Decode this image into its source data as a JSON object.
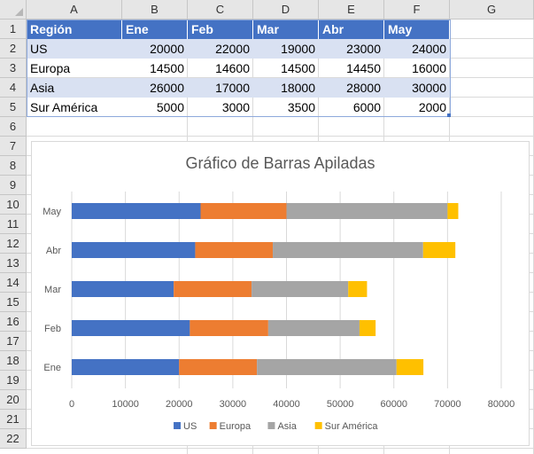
{
  "spreadsheet": {
    "columns": [
      "A",
      "B",
      "C",
      "D",
      "E",
      "F",
      "G"
    ],
    "rows": [
      "1",
      "2",
      "3",
      "4",
      "5",
      "6",
      "7",
      "8",
      "9",
      "10",
      "11",
      "12",
      "13",
      "14",
      "15",
      "16",
      "17",
      "18",
      "19",
      "20",
      "21",
      "22"
    ],
    "table": {
      "header": [
        "Región",
        "Ene",
        "Feb",
        "Mar",
        "Abr",
        "May"
      ],
      "body": [
        [
          "US",
          "20000",
          "22000",
          "19000",
          "23000",
          "24000"
        ],
        [
          "Europa",
          "14500",
          "14600",
          "14500",
          "14450",
          "16000"
        ],
        [
          "Asia",
          "26000",
          "17000",
          "18000",
          "28000",
          "30000"
        ],
        [
          "Sur América",
          "5000",
          "3000",
          "3500",
          "6000",
          "2000"
        ]
      ],
      "header_color": "#4472c4",
      "band_color": "#d9e1f2"
    }
  },
  "chart_data": {
    "type": "bar",
    "orientation": "horizontal",
    "stacked": true,
    "title": "Gráfico de Barras Apiladas",
    "categories": [
      "Ene",
      "Feb",
      "Mar",
      "Abr",
      "May"
    ],
    "series": [
      {
        "name": "US",
        "color": "#4472c4",
        "values": [
          20000,
          22000,
          19000,
          23000,
          24000
        ]
      },
      {
        "name": "Europa",
        "color": "#ed7d31",
        "values": [
          14500,
          14600,
          14500,
          14450,
          16000
        ]
      },
      {
        "name": "Asia",
        "color": "#a5a5a5",
        "values": [
          26000,
          17000,
          18000,
          28000,
          30000
        ]
      },
      {
        "name": "Sur América",
        "color": "#ffc000",
        "values": [
          5000,
          3000,
          3500,
          6000,
          2000
        ]
      }
    ],
    "xlim": [
      0,
      80000
    ],
    "xticks": [
      "0",
      "10000",
      "20000",
      "30000",
      "40000",
      "50000",
      "60000",
      "70000",
      "80000"
    ],
    "xlabel": "",
    "ylabel": "",
    "grid": true,
    "legend_position": "bottom"
  }
}
